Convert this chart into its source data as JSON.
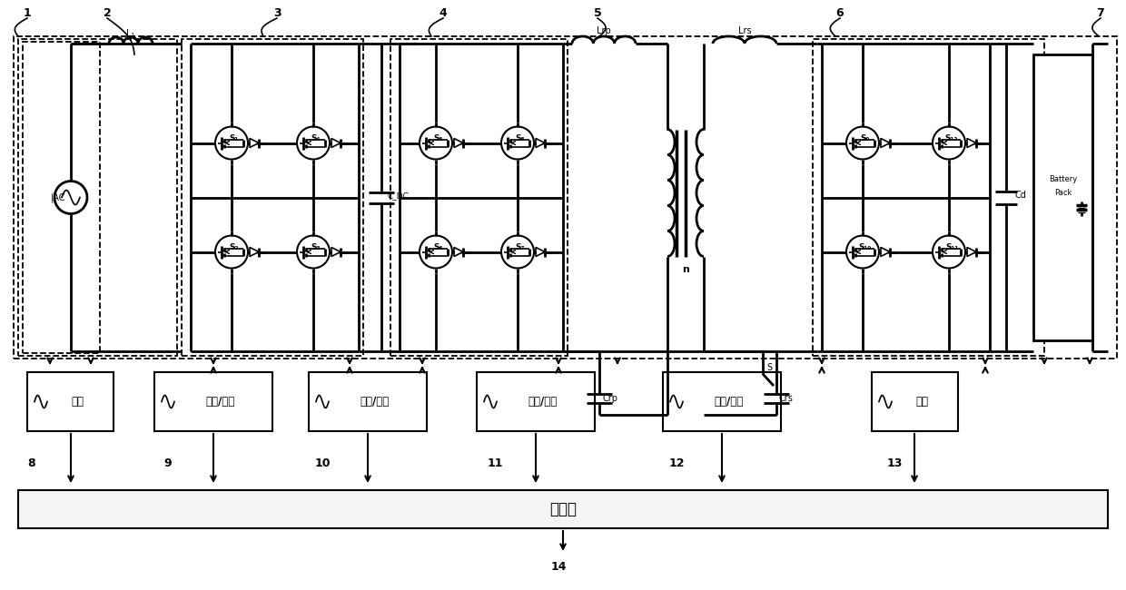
{
  "bg_color": "#ffffff",
  "line_color": "#000000",
  "box_labels": [
    "采样",
    "驱动/采样",
    "驱动/采样",
    "驱动/采样",
    "驱动/采样",
    "采样"
  ],
  "controller_label": "控制器",
  "ac_label": "AC",
  "battery_label": "Battery Pack",
  "numbers_top": [
    [
      30,
      15,
      "1"
    ],
    [
      115,
      15,
      "2"
    ],
    [
      305,
      15,
      "3"
    ],
    [
      490,
      15,
      "4"
    ],
    [
      660,
      15,
      "5"
    ],
    [
      930,
      15,
      "6"
    ],
    [
      1210,
      15,
      "7"
    ]
  ],
  "numbers_bot": [
    [
      35,
      505,
      "8"
    ],
    [
      185,
      505,
      "9"
    ],
    [
      355,
      505,
      "10"
    ],
    [
      545,
      505,
      "11"
    ],
    [
      745,
      505,
      "12"
    ],
    [
      985,
      505,
      "13"
    ],
    [
      615,
      625,
      "14"
    ]
  ]
}
